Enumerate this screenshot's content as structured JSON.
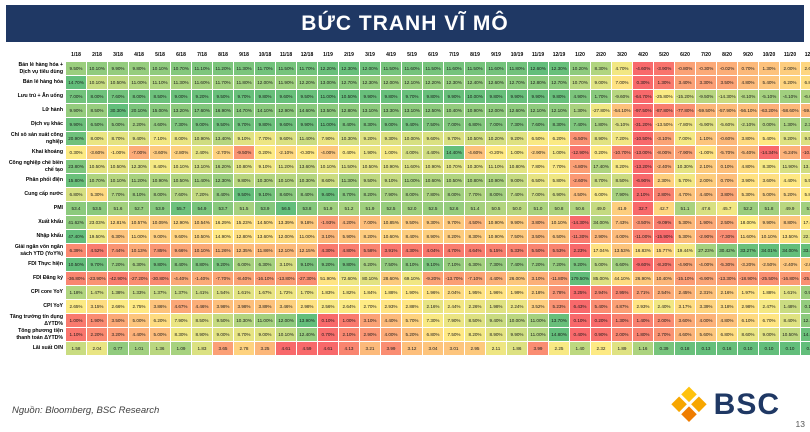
{
  "title": "BỨC TRANH VĨ MÔ",
  "footer": {
    "source": "Nguồn: Bloomberg, BSC Research",
    "logo_text": "BSC",
    "page_number": "13"
  },
  "colors": {
    "header_bg": "#1F3864",
    "scale_min": "#F8696B",
    "scale_mid": "#FFEB84",
    "scale_max": "#63BE7B"
  },
  "chart_data": {
    "type": "heatmap",
    "columns": [
      "1/18",
      "2/18",
      "3/18",
      "4/18",
      "5/18",
      "6/18",
      "7/18",
      "8/18",
      "9/18",
      "10/18",
      "11/18",
      "12/18",
      "1/19",
      "2/19",
      "3/19",
      "4/19",
      "5/19",
      "6/19",
      "7/19",
      "8/19",
      "9/19",
      "10/19",
      "11/19",
      "12/19",
      "1/20",
      "2/20",
      "3/20",
      "4/20",
      "5/20",
      "6/20",
      "7/20",
      "8/20",
      "9/20",
      "10/20",
      "11/20",
      "12/20",
      "1/21"
    ],
    "rows": [
      {
        "label": "Bán lẻ hàng hóa + Dịch vụ tiêu dùng",
        "suffix": "%",
        "decimals": 2,
        "invert": false,
        "values": [
          9.5,
          10.1,
          9.9,
          9.8,
          10.1,
          10.7,
          11.1,
          11.2,
          11.3,
          11.7,
          11.5,
          11.7,
          12.2,
          12.3,
          12.0,
          11.5,
          11.6,
          11.5,
          11.6,
          11.5,
          11.6,
          11.8,
          12.6,
          12.3,
          10.2,
          8.3,
          4.7,
          -4.6,
          -3.9,
          -0.8,
          -0.3,
          -0.02,
          0.7,
          1.3,
          2.0,
          2.6,
          6.4
        ]
      },
      {
        "label": "Bán lẻ hàng hóa",
        "suffix": "%",
        "decimals": 2,
        "invert": false,
        "values": [
          14.7,
          10.1,
          10.5,
          11.0,
          11.1,
          11.3,
          11.6,
          11.7,
          11.8,
          12.0,
          11.9,
          12.2,
          13.0,
          12.7,
          12.3,
          12.0,
          12.1,
          12.2,
          12.3,
          12.4,
          12.6,
          12.7,
          12.8,
          12.7,
          10.7,
          9.0,
          7.0,
          0.3,
          1.3,
          3.4,
          3.3,
          3.5,
          4.8,
          5.4,
          6.2,
          6.8,
          8.7
        ]
      },
      {
        "label": "Lưu trú + Ăn uống",
        "suffix": "%",
        "decimals": 2,
        "invert": false,
        "values": [
          7.0,
          8.0,
          7.6,
          8.0,
          8.5,
          9.0,
          9.2,
          9.5,
          9.7,
          9.8,
          9.6,
          9.5,
          11.0,
          10.5,
          9.9,
          9.8,
          9.7,
          9.8,
          9.9,
          10.0,
          9.8,
          9.9,
          9.9,
          9.8,
          4.9,
          1.7,
          -9.6,
          -64.7,
          -25.8,
          -15.2,
          -9.5,
          -14.3,
          -8.1,
          -5.1,
          -4.1,
          -6.6,
          -4.2
        ]
      },
      {
        "label": "Lữ hành",
        "suffix": "%",
        "decimals": 2,
        "invert": false,
        "values": [
          9.9,
          8.5,
          30.3,
          20.1,
          15.0,
          13.2,
          17.6,
          16.9,
          14.7,
          14.1,
          12.9,
          14.6,
          13.5,
          12.8,
          13.1,
          13.3,
          13.1,
          12.5,
          10.4,
          10.9,
          12.0,
          12.6,
          12.1,
          12.1,
          1.3,
          -27.8,
          -54.1,
          -97.5,
          -87.8,
          -77.8,
          -59.5,
          -57.9,
          -56.1,
          -63.2,
          -58.6,
          -59.5,
          -62.2
        ]
      },
      {
        "label": "Dịch vụ khác",
        "suffix": "%",
        "decimals": 2,
        "invert": false,
        "values": [
          9.9,
          6.5,
          5.0,
          2.2,
          4.6,
          7.3,
          9.0,
          9.5,
          9.7,
          9.8,
          9.6,
          9.9,
          11.0,
          8.4,
          8.3,
          9.0,
          9.4,
          7.5,
          7.0,
          6.8,
          7.0,
          7.3,
          7.6,
          8.3,
          7.4,
          1.8,
          -5.1,
          -31.2,
          -13.5,
          -7.8,
          -5.9,
          -5.6,
          -2.1,
          0.0,
          1.3,
          2.3,
          7.2
        ]
      },
      {
        "label": "Chỉ số sản xuất công nghiệp",
        "suffix": "%",
        "decimals": 2,
        "invert": false,
        "values": [
          20.9,
          8.0,
          8.7,
          9.4,
          7.1,
          8.0,
          10.9,
          13.4,
          9.1,
          7.7,
          9.6,
          11.4,
          7.9,
          10.3,
          9.2,
          9.3,
          10.0,
          9.6,
          9.7,
          10.5,
          10.2,
          9.2,
          6.5,
          6.2,
          -5.5,
          8.9,
          7.2,
          -10.5,
          -3.1,
          7.0,
          1.1,
          -0.6,
          3.8,
          5.4,
          9.2,
          9.5,
          22.16
        ]
      },
      {
        "label": "Khai khoáng",
        "suffix": "%",
        "decimals": 2,
        "invert": false,
        "values": [
          0.3,
          -3.6,
          -1.0,
          -7.0,
          -3.6,
          -2.8,
          2.4,
          -2.7,
          -9.5,
          0.2,
          -2.1,
          -0.3,
          -4.0,
          0.4,
          1.9,
          1.0,
          4.0,
          4.4,
          14.4,
          -4.6,
          -0.2,
          1.0,
          -2.9,
          1.0,
          -12.9,
          0.2,
          -10.7,
          -13.0,
          -8.0,
          -7.9,
          -1.0,
          -5.7,
          -5.4,
          -14.34,
          -6.24,
          -10.41,
          -6.2
        ]
      },
      {
        "label": "Công nghiệp chế biến chế tạo",
        "suffix": "%",
        "decimals": 2,
        "invert": false,
        "values": [
          23.8,
          10.5,
          10.5,
          12.3,
          8.4,
          10.1,
          13.1,
          16.2,
          10.8,
          9.1,
          11.2,
          13.6,
          10.1,
          11.5,
          10.5,
          10.9,
          11.6,
          10.9,
          10.7,
          10.3,
          11.1,
          10.8,
          7.8,
          7.7,
          -4.8,
          17.4,
          8.2,
          -13.2,
          -2.4,
          10.3,
          2.1,
          0.1,
          4.8,
          8.3,
          11.9,
          13.1,
          27.2
        ]
      },
      {
        "label": "Phân phối điện",
        "suffix": "%",
        "decimals": 2,
        "invert": false,
        "values": [
          15.8,
          10.7,
          10.1,
          11.2,
          10.9,
          10.5,
          11.4,
          12.3,
          9.8,
          10.3,
          10.1,
          10.3,
          8.6,
          11.3,
          9.5,
          9.1,
          11.0,
          10.6,
          10.5,
          10.8,
          10.9,
          9.0,
          6.5,
          5.8,
          -2.6,
          8.7,
          8.5,
          -6.9,
          2.3,
          5.7,
          2.0,
          0.7,
          3.9,
          3.6,
          4.4,
          5.5,
          16.3
        ]
      },
      {
        "label": "Cung cấp nước",
        "suffix": "%",
        "decimals": 2,
        "invert": false,
        "values": [
          6.8,
          5.3,
          7.7,
          8.1,
          8.0,
          7.6,
          7.2,
          8.4,
          9.5,
          9.1,
          8.6,
          8.4,
          9.4,
          8.7,
          8.2,
          7.9,
          8.0,
          7.8,
          8.0,
          7.7,
          8.0,
          7.4,
          7.0,
          6.9,
          4.5,
          6.0,
          7.9,
          2.1,
          2.8,
          4.7,
          4.4,
          3.8,
          5.3,
          5.0,
          5.2,
          5.8,
          7.5
        ]
      },
      {
        "label": "PMI",
        "suffix": "",
        "decimals": 1,
        "invert": false,
        "values": [
          53.4,
          53.5,
          51.6,
          52.7,
          53.9,
          55.7,
          54.9,
          53.7,
          51.5,
          53.9,
          56.5,
          53.8,
          51.9,
          51.2,
          51.9,
          52.5,
          52.0,
          52.5,
          52.6,
          51.4,
          50.5,
          50.0,
          51.0,
          50.8,
          50.6,
          49.0,
          41.9,
          32.7,
          42.7,
          51.1,
          47.6,
          45.7,
          52.2,
          51.8,
          49.9,
          51.7,
          51.3
        ]
      },
      {
        "label": "Xuất khẩu",
        "suffix": "%",
        "decimals": 2,
        "invert": false,
        "values": [
          41.62,
          23.03,
          12.81,
          10.57,
          10.09,
          12.9,
          10.54,
          16.29,
          15.23,
          14.5,
          13.39,
          9.18,
          -1.93,
          4.2,
          7.0,
          10.85,
          9.5,
          9.3,
          9.7,
          4.5,
          10.9,
          9.9,
          3.8,
          10.1,
          -14.3,
          34.0,
          7.43,
          -3.5,
          -9.09,
          5.3,
          1.9,
          2.5,
          18.0,
          9.9,
          8.8,
          17.6,
          50.5
        ]
      },
      {
        "label": "Nhập khẩu",
        "suffix": "%",
        "decimals": 2,
        "invert": false,
        "values": [
          47.4,
          19.5,
          6.3,
          11.0,
          9.0,
          9.6,
          10.5,
          14.9,
          12.8,
          13.6,
          12.0,
          11.0,
          3.1,
          5.9,
          8.2,
          10.6,
          8.4,
          8.9,
          8.2,
          8.3,
          10.9,
          7.5,
          3.5,
          6.5,
          -11.3,
          2.9,
          4.0,
          -11.0,
          -15.9,
          5.3,
          -2.9,
          -7.3,
          11.6,
          10.1,
          13.5,
          22.7,
          41.0
        ]
      },
      {
        "label": "Giải ngân vốn ngân sách YTD (YoY%)",
        "suffix": "%",
        "decimals": 2,
        "invert": false,
        "values": [
          6.39,
          4.52,
          7.44,
          10.13,
          7.85,
          9.66,
          10.1,
          11.26,
          12.35,
          11.86,
          12.1,
          12.15,
          4.3,
          4.8,
          5.58,
          3.91,
          4.3,
          4.04,
          4.7,
          4.64,
          5.15,
          5.33,
          5.5,
          5.53,
          2.23,
          17.04,
          13.53,
          16.83,
          15.77,
          19.44,
          27.23,
          30.42,
          33.27,
          34.01,
          34.0,
          33.8,
          24.5
        ]
      },
      {
        "label": "FDI Thực hiện",
        "suffix": "%",
        "decimals": 2,
        "invert": false,
        "values": [
          10.5,
          9.7,
          7.2,
          6.3,
          9.8,
          8.4,
          8.8,
          9.2,
          6.0,
          6.3,
          3.1,
          9.1,
          9.2,
          9.8,
          6.2,
          7.5,
          8.1,
          9.1,
          7.1,
          6.3,
          7.3,
          7.4,
          7.2,
          7.2,
          9.2,
          5.0,
          6.6,
          -9.6,
          -8.2,
          -4.9,
          -4.0,
          -5.3,
          -3.2,
          -2.5,
          -2.4,
          -2.0,
          4.1
        ]
      },
      {
        "label": "FDI Đăng ký",
        "suffix": "%",
        "decimals": 2,
        "invert": false,
        "values": [
          -36.8,
          -23.9,
          -42.9,
          -27.2,
          -30.8,
          -4.4,
          -1.4,
          -7.7,
          -8.4,
          -16.1,
          -13.8,
          -27.3,
          51.9,
          72.6,
          80.1,
          28.6,
          69.1,
          -9.2,
          -13.7,
          -7.1,
          4.4,
          26.0,
          3.1,
          -11.8,
          179.5,
          85.0,
          44.1,
          26.9,
          10.4,
          -15.1,
          -6.9,
          -13.3,
          -18.9,
          -25.5,
          -16.8,
          -25.0,
          -62.6
        ]
      },
      {
        "label": "CPI core YoY",
        "suffix": "%",
        "decimals": 2,
        "invert": true,
        "values": [
          1.18,
          1.47,
          1.38,
          1.33,
          1.37,
          1.37,
          1.41,
          1.54,
          1.61,
          1.67,
          1.72,
          1.7,
          1.83,
          1.82,
          1.84,
          1.88,
          1.9,
          1.96,
          2.04,
          1.95,
          1.96,
          1.99,
          2.18,
          2.78,
          3.25,
          2.94,
          2.95,
          2.71,
          2.54,
          2.45,
          2.31,
          2.16,
          1.97,
          1.88,
          1.61,
          0.99,
          0.49
        ]
      },
      {
        "label": "CPI YoY",
        "suffix": "%",
        "decimals": 2,
        "invert": true,
        "values": [
          2.65,
          3.15,
          2.66,
          2.75,
          3.86,
          4.67,
          4.46,
          3.98,
          3.98,
          3.89,
          3.46,
          2.98,
          2.56,
          2.64,
          2.7,
          2.93,
          2.88,
          2.16,
          2.44,
          2.26,
          1.98,
          2.24,
          3.52,
          5.23,
          6.43,
          5.4,
          4.87,
          2.93,
          2.4,
          3.17,
          3.39,
          3.18,
          2.98,
          2.47,
          1.48,
          0.19,
          -0.97
        ]
      },
      {
        "label": "Tăng trưởng tín dụng ΔYTD%",
        "suffix": "%",
        "decimals": 2,
        "invert": false,
        "values": [
          1.0,
          1.9,
          3.5,
          5.0,
          6.2,
          7.9,
          8.5,
          9.5,
          10.3,
          11.0,
          12.0,
          13.9,
          0.1,
          1.0,
          3.1,
          4.4,
          5.7,
          7.3,
          7.9,
          8.5,
          9.4,
          10.0,
          11.0,
          13.7,
          0.1,
          0.2,
          1.3,
          1.4,
          2.0,
          3.6,
          4.0,
          4.8,
          6.1,
          6.7,
          8.4,
          12.1,
          0.8
        ]
      },
      {
        "label": "Tổng phương tiện thanh toán ΔYTD%",
        "suffix": "%",
        "decimals": 2,
        "invert": false,
        "values": [
          1.1,
          2.2,
          3.2,
          4.4,
          5.0,
          8.3,
          8.9,
          9.0,
          8.7,
          9.0,
          10.1,
          12.4,
          0.7,
          2.1,
          2.9,
          4.0,
          5.2,
          6.8,
          7.5,
          8.2,
          8.9,
          9.9,
          11.0,
          14.8,
          0.4,
          0.9,
          2.0,
          1.8,
          2.7,
          4.6,
          5.6,
          6.8,
          8.6,
          9.0,
          10.5,
          14.5,
          0.6
        ]
      },
      {
        "label": "Lãi suất O/N",
        "suffix": "",
        "decimals": 2,
        "invert": true,
        "values": [
          1.58,
          2.04,
          0.77,
          1.01,
          1.36,
          1.09,
          1.83,
          3.65,
          2.78,
          3.25,
          4.61,
          4.59,
          4.61,
          4.13,
          3.21,
          3.99,
          3.12,
          3.04,
          3.01,
          2.95,
          2.11,
          1.86,
          3.99,
          2.25,
          1.4,
          2.32,
          1.89,
          1.16,
          0.39,
          0.18,
          0.13,
          0.16,
          0.1,
          0.1,
          0.1,
          0.1,
          0.3
        ]
      }
    ]
  }
}
